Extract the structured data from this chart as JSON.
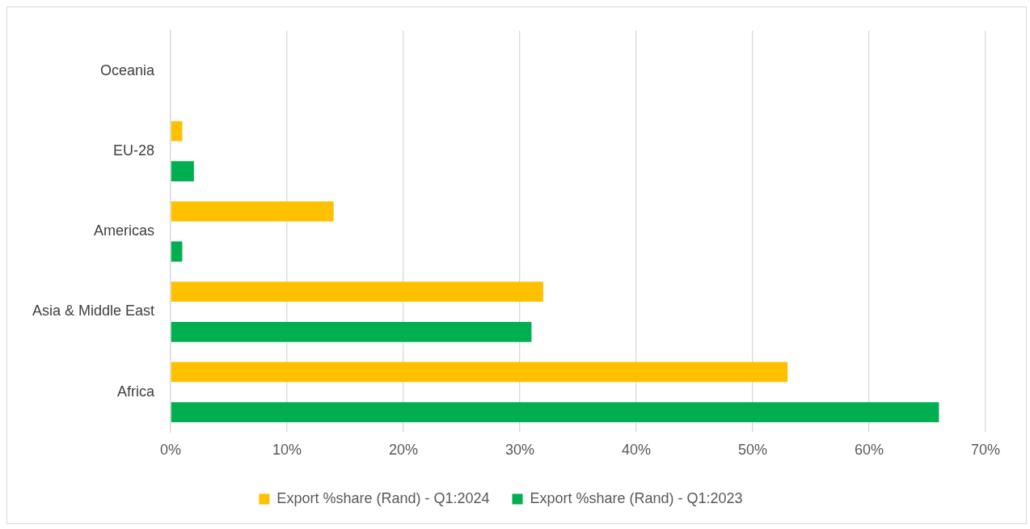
{
  "chart_data": {
    "type": "bar",
    "orientation": "horizontal",
    "categories": [
      "Oceania",
      "EU-28",
      "Americas",
      "Asia & Middle East",
      "Africa"
    ],
    "series": [
      {
        "name": "Export %share (Rand) - Q1:2024",
        "color": "#ffc000",
        "values": [
          0,
          1,
          14,
          32,
          53
        ]
      },
      {
        "name": "Export %share (Rand) - Q1:2023",
        "color": "#00b050",
        "values": [
          0,
          2,
          1,
          31,
          66
        ]
      }
    ],
    "xlim": [
      0,
      70
    ],
    "xticks": [
      {
        "value": 0,
        "label": "0%"
      },
      {
        "value": 10,
        "label": "10%"
      },
      {
        "value": 20,
        "label": "20%"
      },
      {
        "value": 30,
        "label": "30%"
      },
      {
        "value": 40,
        "label": "40%"
      },
      {
        "value": 50,
        "label": "50%"
      },
      {
        "value": 60,
        "label": "60%"
      },
      {
        "value": 70,
        "label": "70%"
      }
    ],
    "grid": "x",
    "legend": "bottom"
  }
}
